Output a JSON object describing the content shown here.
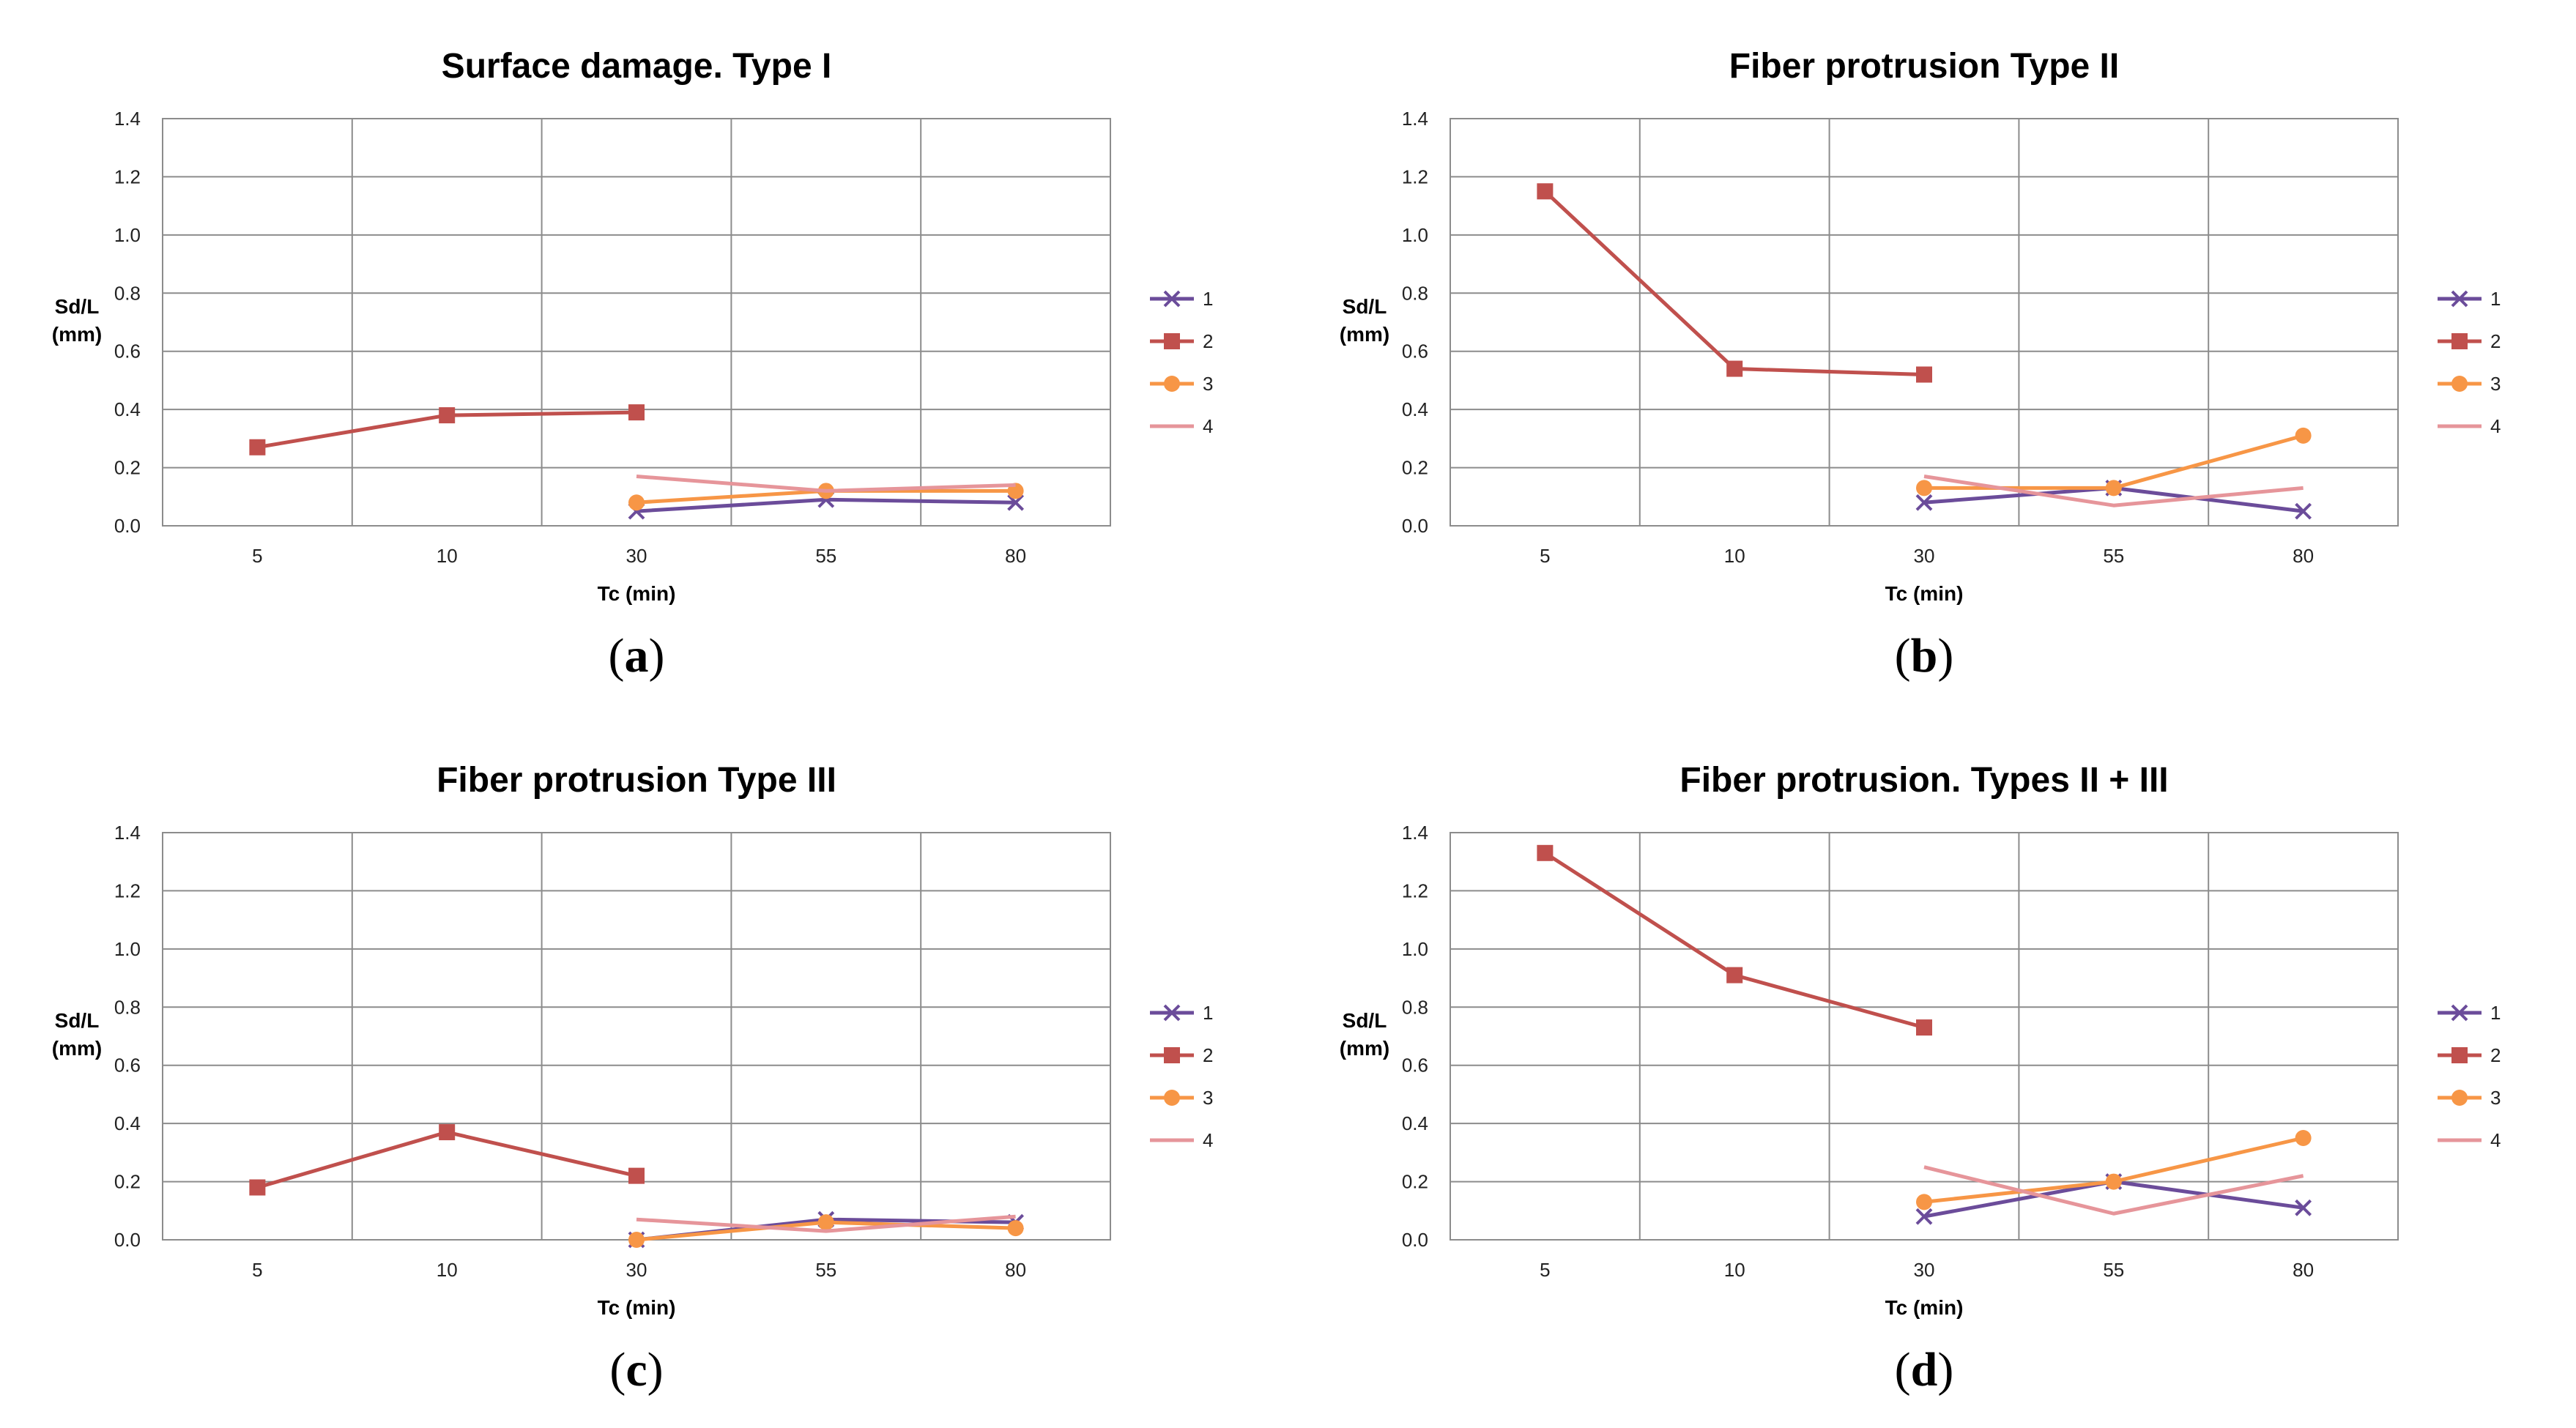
{
  "chart_data": [
    {
      "type": "line",
      "title": "Surface damage. Type I",
      "caption_letter": "a",
      "xlabel": "Tc (min)",
      "ylabel": [
        "Sd/L",
        "(mm)"
      ],
      "categories": [
        "5",
        "10",
        "30",
        "55",
        "80"
      ],
      "ylim": [
        0,
        1.4
      ],
      "yticks": [
        "0.0",
        "0.2",
        "0.4",
        "0.6",
        "0.8",
        "1.0",
        "1.2",
        "1.4"
      ],
      "grid": true,
      "legend": "right",
      "series": [
        {
          "name": "1",
          "values": [
            null,
            null,
            0.05,
            0.09,
            0.08
          ]
        },
        {
          "name": "2",
          "values": [
            0.27,
            0.38,
            0.39,
            null,
            null
          ]
        },
        {
          "name": "3",
          "values": [
            null,
            null,
            0.08,
            0.12,
            0.12
          ]
        },
        {
          "name": "4",
          "values": [
            null,
            null,
            0.17,
            0.12,
            0.14
          ]
        }
      ]
    },
    {
      "type": "line",
      "title": "Fiber protrusion Type II",
      "caption_letter": "b",
      "xlabel": "Tc (min)",
      "ylabel": [
        "Sd/L",
        "(mm)"
      ],
      "categories": [
        "5",
        "10",
        "30",
        "55",
        "80"
      ],
      "ylim": [
        0,
        1.4
      ],
      "yticks": [
        "0.0",
        "0.2",
        "0.4",
        "0.6",
        "0.8",
        "1.0",
        "1.2",
        "1.4"
      ],
      "grid": true,
      "legend": "right",
      "series": [
        {
          "name": "1",
          "values": [
            null,
            null,
            0.08,
            0.13,
            0.05
          ]
        },
        {
          "name": "2",
          "values": [
            1.15,
            0.54,
            0.52,
            null,
            null
          ]
        },
        {
          "name": "3",
          "values": [
            null,
            null,
            0.13,
            0.13,
            0.31
          ]
        },
        {
          "name": "4",
          "values": [
            null,
            null,
            0.17,
            0.07,
            0.13
          ]
        }
      ]
    },
    {
      "type": "line",
      "title": "Fiber protrusion Type III",
      "caption_letter": "c",
      "xlabel": "Tc (min)",
      "ylabel": [
        "Sd/L",
        "(mm)"
      ],
      "categories": [
        "5",
        "10",
        "30",
        "55",
        "80"
      ],
      "ylim": [
        0,
        1.4
      ],
      "yticks": [
        "0.0",
        "0.2",
        "0.4",
        "0.6",
        "0.8",
        "1.0",
        "1.2",
        "1.4"
      ],
      "grid": true,
      "legend": "right",
      "series": [
        {
          "name": "1",
          "values": [
            null,
            null,
            0.0,
            0.07,
            0.06
          ]
        },
        {
          "name": "2",
          "values": [
            0.18,
            0.37,
            0.22,
            null,
            null
          ]
        },
        {
          "name": "3",
          "values": [
            null,
            null,
            0.0,
            0.06,
            0.04
          ]
        },
        {
          "name": "4",
          "values": [
            null,
            null,
            0.07,
            0.03,
            0.08
          ]
        }
      ]
    },
    {
      "type": "line",
      "title": "Fiber protrusion. Types II + III",
      "caption_letter": "d",
      "xlabel": "Tc (min)",
      "ylabel": [
        "Sd/L",
        "(mm)"
      ],
      "categories": [
        "5",
        "10",
        "30",
        "55",
        "80"
      ],
      "ylim": [
        0,
        1.4
      ],
      "yticks": [
        "0.0",
        "0.2",
        "0.4",
        "0.6",
        "0.8",
        "1.0",
        "1.2",
        "1.4"
      ],
      "grid": true,
      "legend": "right",
      "series": [
        {
          "name": "1",
          "values": [
            null,
            null,
            0.08,
            0.2,
            0.11
          ]
        },
        {
          "name": "2",
          "values": [
            1.33,
            0.91,
            0.73,
            null,
            null
          ]
        },
        {
          "name": "3",
          "values": [
            null,
            null,
            0.13,
            0.2,
            0.35
          ]
        },
        {
          "name": "4",
          "values": [
            null,
            null,
            0.25,
            0.09,
            0.22
          ]
        }
      ]
    }
  ],
  "series_styles": [
    {
      "color": "#6b4c9a",
      "marker": "x"
    },
    {
      "color": "#c0504d",
      "marker": "square"
    },
    {
      "color": "#f79646",
      "marker": "circle"
    },
    {
      "color": "#e6959a",
      "marker": "none"
    }
  ]
}
